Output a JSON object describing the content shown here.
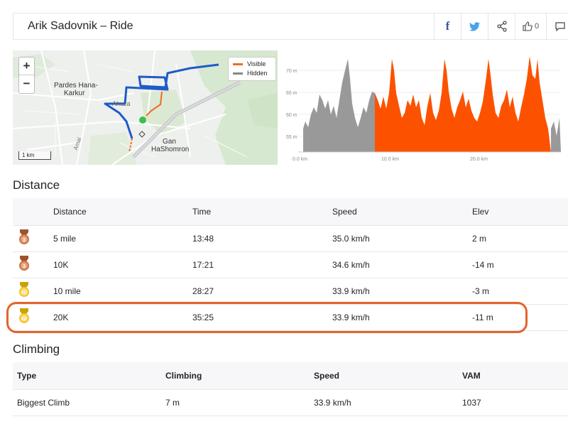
{
  "header": {
    "title": "Arik Sadovnik – Ride",
    "kudos_count": "0",
    "icons": [
      "facebook-icon",
      "twitter-icon",
      "share-icon",
      "thumbs-up-icon",
      "comment-icon"
    ]
  },
  "map": {
    "zoom_in": "+",
    "zoom_out": "−",
    "legend_visible": "Visible",
    "legend_hidden": "Hidden",
    "scale": "1 km",
    "labels": {
      "pardes": "Pardes Hana-",
      "karkur": "Karkur",
      "ahuza": "Ahuza",
      "gan": "Gan",
      "hashomron": "HaShomron",
      "amal": "Amal"
    },
    "colors": {
      "route": "#1f5bc9",
      "visible": "#f26a21",
      "hidden": "#888888"
    }
  },
  "elevation": {
    "y_ticks": [
      "70 m",
      "65 m",
      "60 m",
      "55 m"
    ],
    "x_ticks": [
      "0.0 km",
      "10.0 km",
      "20.0 km"
    ],
    "colors": {
      "visible": "#fc5200",
      "hidden": "#999999"
    }
  },
  "distance": {
    "title": "Distance",
    "headers": [
      "Distance",
      "Time",
      "Speed",
      "Elev"
    ],
    "rows": [
      {
        "badge": "3",
        "distance": "5 mile",
        "time": "13:48",
        "speed": "35.0 km/h",
        "elev": "2 m"
      },
      {
        "badge": "3",
        "distance": "10K",
        "time": "17:21",
        "speed": "34.6 km/h",
        "elev": "-14 m"
      },
      {
        "badge": "PR",
        "distance": "10 mile",
        "time": "28:27",
        "speed": "33.9 km/h",
        "elev": "-3 m"
      },
      {
        "badge": "PR",
        "distance": "20K",
        "time": "35:25",
        "speed": "33.9 km/h",
        "elev": "-11 m"
      }
    ]
  },
  "climbing": {
    "title": "Climbing",
    "headers": [
      "Type",
      "Climbing",
      "Speed",
      "VAM"
    ],
    "rows": [
      {
        "type": "Biggest Climb",
        "climbing": "7 m",
        "speed": "33.9 km/h",
        "vam": "1037"
      }
    ]
  }
}
